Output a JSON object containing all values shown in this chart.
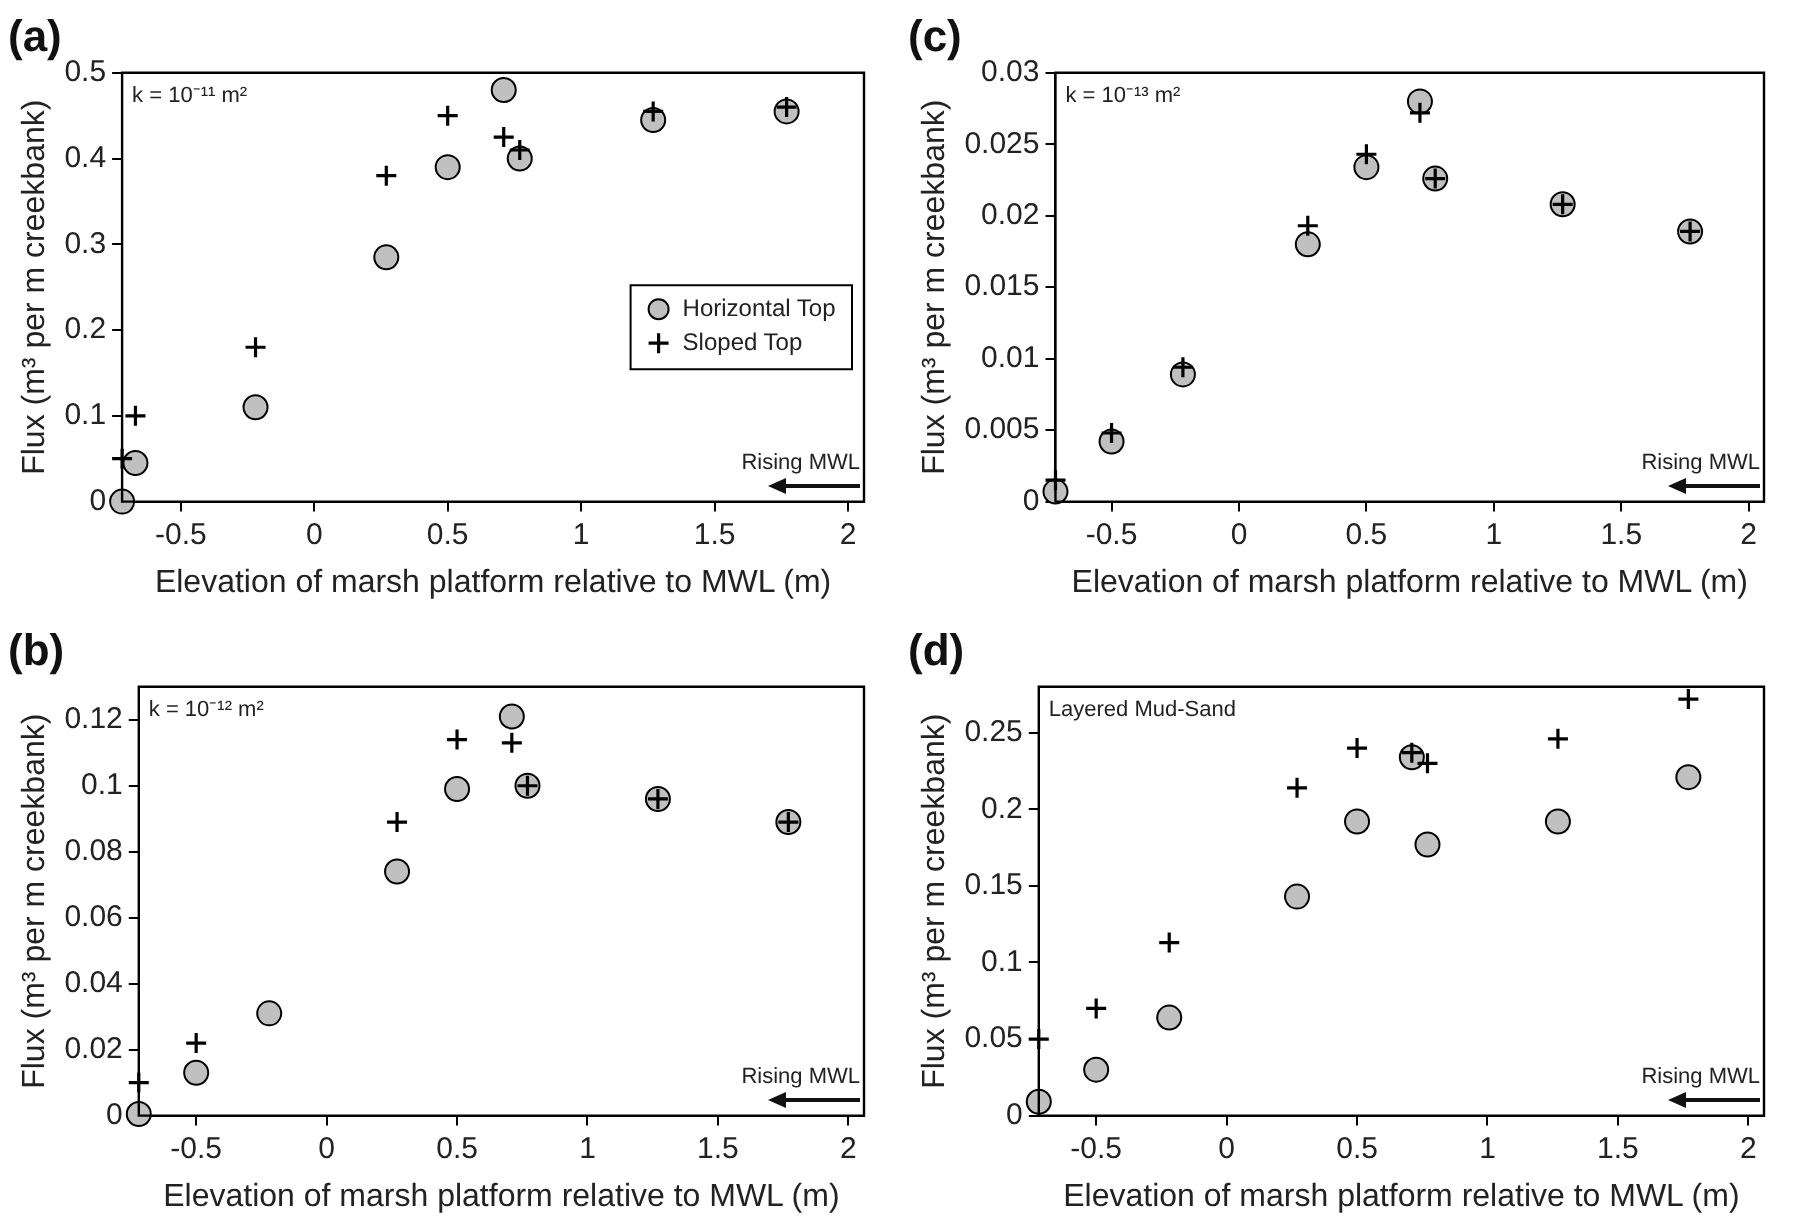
{
  "chart_data": [
    {
      "type": "scatter",
      "title": "(a)",
      "xlabel": "Elevation of marsh platform relative to MWL (m)",
      "ylabel": "Flux (m³ per m creekbank)",
      "annotations": [
        "k = 10⁻¹¹ m²",
        "Rising MWL"
      ],
      "xlim": [
        -0.72,
        2.06
      ],
      "xticks": [
        -0.5,
        0,
        0.5,
        1,
        1.5,
        2
      ],
      "ylim": [
        0,
        0.5
      ],
      "yticks": [
        0,
        0.1,
        0.2,
        0.3,
        0.4,
        0.5
      ],
      "legend": "right",
      "grid": false,
      "x": [
        -0.72,
        -0.67,
        -0.22,
        0.27,
        0.5,
        0.71,
        0.77,
        1.27,
        1.77
      ],
      "series": [
        {
          "name": "Horizontal Top",
          "color": "#c0c0c0",
          "marker": "circle",
          "values": [
            0,
            0.045,
            0.11,
            0.285,
            0.39,
            0.48,
            0.4,
            0.445,
            0.455
          ]
        },
        {
          "name": "Sloped Top",
          "color": "#000000",
          "marker": "cross",
          "values": [
            0.05,
            0.1,
            0.18,
            0.38,
            0.45,
            0.425,
            0.41,
            0.455,
            0.46
          ]
        }
      ]
    },
    {
      "type": "scatter",
      "title": "(c)",
      "xlabel": "Elevation of marsh platform relative to MWL (m)",
      "ylabel": "Flux (m³ per m creekbank)",
      "annotations": [
        "k = 10⁻¹³ m²",
        "Rising MWL"
      ],
      "xlim": [
        -0.72,
        2.06
      ],
      "xticks": [
        -0.5,
        0,
        0.5,
        1,
        1.5,
        2
      ],
      "ylim": [
        0,
        0.03
      ],
      "yticks": [
        0,
        0.005,
        0.01,
        0.015,
        0.02,
        0.025,
        0.03
      ],
      "grid": false,
      "x": [
        -0.72,
        -0.5,
        -0.22,
        0.27,
        0.5,
        0.71,
        0.77,
        1.27,
        1.77
      ],
      "series": [
        {
          "color": "#c0c0c0",
          "marker": "circle",
          "values": [
            0.0007,
            0.0042,
            0.0089,
            0.018,
            0.0234,
            0.028,
            0.0226,
            0.0208,
            0.0189
          ]
        },
        {
          "color": "#000000",
          "marker": "cross",
          "values": [
            0.0015,
            0.0048,
            0.0094,
            0.0193,
            0.0243,
            0.0272,
            0.0226,
            0.0208,
            0.0189
          ]
        }
      ]
    },
    {
      "type": "scatter",
      "title": "(b)",
      "xlabel": "Elevation of marsh platform relative to MWL (m)",
      "ylabel": "Flux (m³ per m creekbank)",
      "annotations": [
        "k = 10⁻¹² m²",
        "Rising MWL"
      ],
      "xlim": [
        -0.72,
        2.06
      ],
      "xticks": [
        -0.5,
        0,
        0.5,
        1,
        1.5,
        2
      ],
      "ylim": [
        0,
        0.13
      ],
      "yticks": [
        0,
        0.02,
        0.04,
        0.06,
        0.08,
        0.1,
        0.12
      ],
      "grid": false,
      "x": [
        -0.72,
        -0.5,
        -0.22,
        0.27,
        0.5,
        0.71,
        0.77,
        1.27,
        1.77
      ],
      "series": [
        {
          "color": "#c0c0c0",
          "marker": "circle",
          "values": [
            0.0005,
            0.013,
            0.031,
            0.074,
            0.099,
            0.121,
            0.1,
            0.096,
            0.089
          ]
        },
        {
          "color": "#000000",
          "marker": "cross",
          "values": [
            0.01,
            0.022,
            null,
            0.089,
            0.114,
            0.113,
            0.1,
            0.096,
            0.089
          ]
        }
      ]
    },
    {
      "type": "scatter",
      "title": "(d)",
      "xlabel": "Elevation of marsh platform relative to MWL (m)",
      "ylabel": "Flux (m³ per m creekbank)",
      "annotations": [
        "Layered Mud-Sand",
        "Rising MWL"
      ],
      "xlim": [
        -0.72,
        2.06
      ],
      "xticks": [
        -0.5,
        0,
        0.5,
        1,
        1.5,
        2
      ],
      "ylim": [
        0,
        0.28
      ],
      "yticks": [
        0,
        0.05,
        0.1,
        0.15,
        0.2,
        0.25
      ],
      "grid": false,
      "x": [
        -0.72,
        -0.5,
        -0.22,
        0.27,
        0.5,
        0.71,
        0.77,
        1.27,
        1.77
      ],
      "series": [
        {
          "color": "#c0c0c0",
          "marker": "circle",
          "values": [
            0.009,
            0.03,
            0.064,
            0.143,
            0.192,
            0.234,
            0.177,
            0.192,
            0.221
          ]
        },
        {
          "color": "#000000",
          "marker": "cross",
          "values": [
            0.05,
            0.07,
            0.113,
            0.214,
            0.24,
            0.237,
            0.23,
            0.246,
            0.272
          ]
        }
      ]
    }
  ]
}
